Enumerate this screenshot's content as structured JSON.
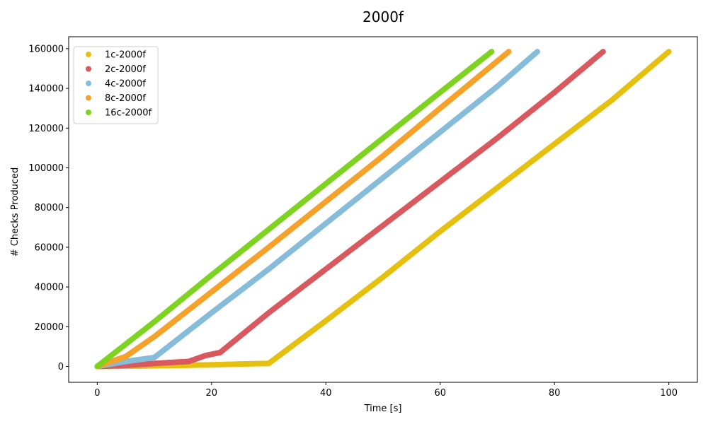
{
  "chart_data": {
    "type": "scatter",
    "title": "2000f",
    "xlabel": "Time [s]",
    "ylabel": "# Checks Produced",
    "xlim": [
      -5,
      105
    ],
    "ylim": [
      -8000,
      166000
    ],
    "xticks": [
      0,
      20,
      40,
      60,
      80,
      100
    ],
    "yticks": [
      0,
      20000,
      40000,
      60000,
      80000,
      100000,
      120000,
      140000,
      160000
    ],
    "grid": false,
    "legend_position": "top-left",
    "series": [
      {
        "name": "1c-2000f",
        "color": "#e6c00f",
        "points": [
          [
            0,
            0
          ],
          [
            10,
            300
          ],
          [
            20,
            800
          ],
          [
            25,
            1200
          ],
          [
            30,
            1500
          ],
          [
            40,
            23000
          ],
          [
            50,
            45000
          ],
          [
            60,
            68000
          ],
          [
            70,
            90000
          ],
          [
            80,
            112000
          ],
          [
            90,
            134000
          ],
          [
            100,
            158500
          ]
        ]
      },
      {
        "name": "2c-2000f",
        "color": "#d9595f",
        "points": [
          [
            0,
            0
          ],
          [
            5,
            500
          ],
          [
            10,
            1500
          ],
          [
            16,
            2500
          ],
          [
            19,
            5500
          ],
          [
            21.5,
            7000
          ],
          [
            30,
            27000
          ],
          [
            40,
            49000
          ],
          [
            50,
            71000
          ],
          [
            60,
            93000
          ],
          [
            70,
            115000
          ],
          [
            80,
            138000
          ],
          [
            88.5,
            158500
          ]
        ]
      },
      {
        "name": "4c-2000f",
        "color": "#85bcd9",
        "points": [
          [
            0,
            0
          ],
          [
            5,
            2500
          ],
          [
            10,
            4500
          ],
          [
            20,
            27000
          ],
          [
            30,
            49000
          ],
          [
            40,
            72000
          ],
          [
            50,
            95000
          ],
          [
            60,
            118000
          ],
          [
            70,
            141000
          ],
          [
            77,
            158500
          ]
        ]
      },
      {
        "name": "8c-2000f",
        "color": "#f5a12a",
        "points": [
          [
            0,
            0
          ],
          [
            5,
            5000
          ],
          [
            10,
            15000
          ],
          [
            20,
            37500
          ],
          [
            30,
            60000
          ],
          [
            40,
            83000
          ],
          [
            50,
            106000
          ],
          [
            60,
            130000
          ],
          [
            72,
            158500
          ]
        ]
      },
      {
        "name": "16c-2000f",
        "color": "#7ed321",
        "points": [
          [
            0,
            0
          ],
          [
            10,
            22500
          ],
          [
            20,
            46000
          ],
          [
            30,
            69000
          ],
          [
            40,
            92000
          ],
          [
            50,
            115000
          ],
          [
            60,
            138000
          ],
          [
            69,
            158500
          ]
        ]
      }
    ]
  }
}
